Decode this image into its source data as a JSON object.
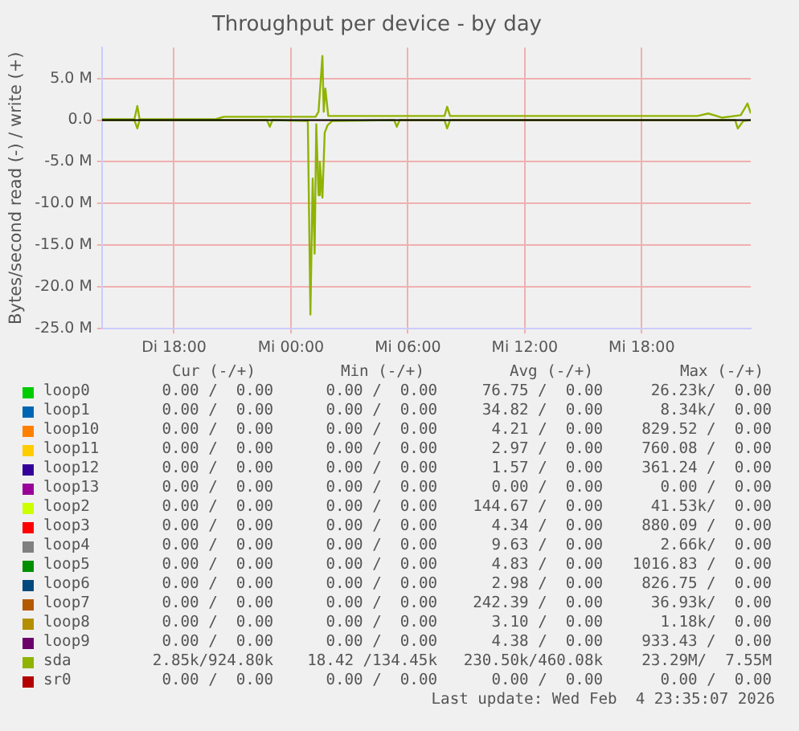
{
  "chart_data": {
    "type": "line",
    "title": "Throughput per device - by day",
    "ylabel": "Bytes/second read (-) / write (+)",
    "xlim": [
      "2026-02-03T14:18",
      "2026-02-04T23:36"
    ],
    "xticks": [
      {
        "value": "2026-02-03T18:00",
        "label": "Di 18:00"
      },
      {
        "value": "2026-02-04T00:00",
        "label": "Mi 00:00"
      },
      {
        "value": "2026-02-04T06:00",
        "label": "Mi 06:00"
      },
      {
        "value": "2026-02-04T12:00",
        "label": "Mi 12:00"
      },
      {
        "value": "2026-02-04T18:00",
        "label": "Mi 18:00"
      }
    ],
    "ylim": [
      -25000000,
      8700000
    ],
    "yticks": [
      {
        "value": 5000000,
        "label": "5.0 M"
      },
      {
        "value": 0,
        "label": "0.0"
      },
      {
        "value": -5000000,
        "label": "-5.0 M"
      },
      {
        "value": -10000000,
        "label": "-10.0 M"
      },
      {
        "value": -15000000,
        "label": "-15.0 M"
      },
      {
        "value": -20000000,
        "label": "-20.0 M"
      },
      {
        "value": -25000000,
        "label": "-25.0 M"
      }
    ],
    "grid": true,
    "legend": "bottom",
    "marker": "none",
    "ref_lines": [
      {
        "axis": "y",
        "value": 0,
        "color": "#000000"
      }
    ],
    "series": [
      {
        "name": "loop0",
        "color": "#00cc00"
      },
      {
        "name": "loop1",
        "color": "#0066b3"
      },
      {
        "name": "loop10",
        "color": "#ff8000"
      },
      {
        "name": "loop11",
        "color": "#ffcc00"
      },
      {
        "name": "loop12",
        "color": "#330099"
      },
      {
        "name": "loop13",
        "color": "#990099"
      },
      {
        "name": "loop2",
        "color": "#ccff00"
      },
      {
        "name": "loop3",
        "color": "#ff0000"
      },
      {
        "name": "loop4",
        "color": "#808080"
      },
      {
        "name": "loop5",
        "color": "#008f00"
      },
      {
        "name": "loop6",
        "color": "#00487d"
      },
      {
        "name": "loop7",
        "color": "#b35a00"
      },
      {
        "name": "loop8",
        "color": "#b38f00"
      },
      {
        "name": "loop9",
        "color": "#6b006b"
      },
      {
        "name": "sda",
        "color": "#8fb300",
        "x": [
          "2026-02-03T14:18",
          "2026-02-03T15:58",
          "2026-02-03T16:07",
          "2026-02-03T16:14",
          "2026-02-03T20:08",
          "2026-02-03T20:33",
          "2026-02-04T01:16",
          "2026-02-04T01:25",
          "2026-02-04T01:37",
          "2026-02-04T01:41",
          "2026-02-04T01:46",
          "2026-02-04T01:55",
          "2026-02-04T07:53",
          "2026-02-04T08:01",
          "2026-02-04T08:10",
          "2026-02-04T12:31",
          "2026-02-04T20:52",
          "2026-02-04T21:25",
          "2026-02-04T22:07",
          "2026-02-04T23:05",
          "2026-02-04T23:26",
          "2026-02-04T23:36"
        ],
        "values": [
          100000,
          100000,
          1700000,
          100000,
          100000,
          400000,
          400000,
          1000000,
          7700000,
          1000000,
          3800000,
          500000,
          500000,
          1600000,
          500000,
          500000,
          500000,
          800000,
          300000,
          600000,
          2000000,
          800000
        ]
      },
      {
        "name": "sr0",
        "color": "#b30000"
      },
      {
        "color": "#8fb300",
        "x": [
          "2026-02-03T14:18",
          "2026-02-03T15:58",
          "2026-02-03T16:07",
          "2026-02-03T16:14",
          "2026-02-03T22:46",
          "2026-02-03T22:55",
          "2026-02-03T23:03",
          "2026-02-04T00:52",
          "2026-02-04T01:00",
          "2026-02-04T01:07",
          "2026-02-04T01:13",
          "2026-02-04T01:18",
          "2026-02-04T01:25",
          "2026-02-04T01:29",
          "2026-02-04T01:37",
          "2026-02-04T01:44",
          "2026-02-04T01:53",
          "2026-02-04T02:07",
          "2026-02-04T05:18",
          "2026-02-04T05:26",
          "2026-02-04T05:35",
          "2026-02-04T07:53",
          "2026-02-04T08:01",
          "2026-02-04T08:10",
          "2026-02-04T22:48",
          "2026-02-04T22:56",
          "2026-02-04T23:13",
          "2026-02-04T23:36"
        ],
        "values": [
          0,
          0,
          -1000000,
          0,
          0,
          -800000,
          0,
          -100000,
          -23300000,
          -7000000,
          -16000000,
          -500000,
          -9000000,
          -5000000,
          -9300000,
          -1500000,
          -600000,
          -100000,
          0,
          -800000,
          0,
          0,
          -1000000,
          0,
          0,
          -1000000,
          -100000,
          0
        ]
      }
    ],
    "annotations": [
      "Cur (-/+)",
      "Min (-/+)",
      "Avg (-/+)",
      "Max (-/+)",
      "0.00 /  0.00",
      "0.00 /  0.00",
      "76.75 /  0.00",
      "26.23k/  0.00",
      "0.00 /  0.00",
      "0.00 /  0.00",
      "34.82 /  0.00",
      "8.34k/  0.00",
      "0.00 /  0.00",
      "0.00 /  0.00",
      "4.21 /  0.00",
      "829.52 /  0.00",
      "0.00 /  0.00",
      "0.00 /  0.00",
      "2.97 /  0.00",
      "760.08 /  0.00",
      "0.00 /  0.00",
      "0.00 /  0.00",
      "1.57 /  0.00",
      "361.24 /  0.00",
      "0.00 /  0.00",
      "0.00 /  0.00",
      "0.00 /  0.00",
      "0.00 /  0.00",
      "0.00 /  0.00",
      "0.00 /  0.00",
      "144.67 /  0.00",
      "41.53k/  0.00",
      "0.00 /  0.00",
      "0.00 /  0.00",
      "4.34 /  0.00",
      "880.09 /  0.00",
      "0.00 /  0.00",
      "0.00 /  0.00",
      "9.63 /  0.00",
      "2.66k/  0.00",
      "0.00 /  0.00",
      "0.00 /  0.00",
      "4.83 /  0.00",
      "1016.83 /  0.00",
      "0.00 /  0.00",
      "0.00 /  0.00",
      "2.98 /  0.00",
      "826.75 /  0.00",
      "0.00 /  0.00",
      "0.00 /  0.00",
      "242.39 /  0.00",
      "36.93k/  0.00",
      "0.00 /  0.00",
      "0.00 /  0.00",
      "3.10 /  0.00",
      "1.18k/  0.00",
      "0.00 /  0.00",
      "0.00 /  0.00",
      "4.38 /  0.00",
      "933.43 /  0.00",
      "2.85k/924.80k",
      "18.42 /134.45k",
      "230.50k/460.08k",
      "23.29M/  7.55M",
      "0.00 /  0.00",
      "0.00 /  0.00",
      "0.00 /  0.00",
      "0.00 /  0.00",
      "Last update: Wed Feb  4 23:35:07 2026"
    ]
  }
}
